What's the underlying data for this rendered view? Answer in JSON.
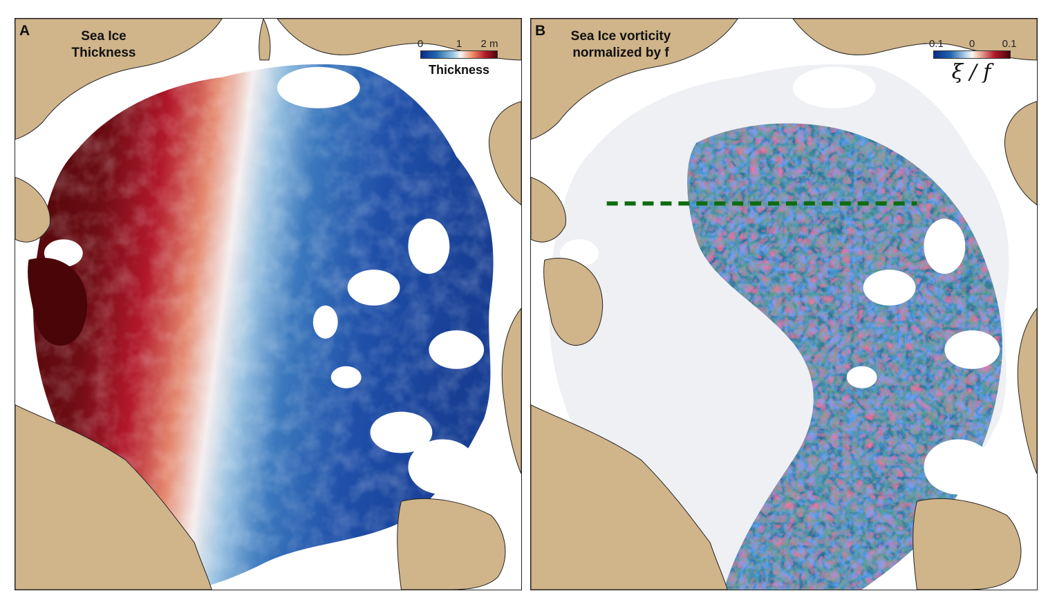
{
  "panels": {
    "a": {
      "letter": "A",
      "title_line1": "Sea Ice",
      "title_line2": "Thickness",
      "colorbar": {
        "ticks": [
          "0",
          "1",
          "2 m"
        ],
        "label": "Thickness"
      }
    },
    "b": {
      "letter": "B",
      "title_line1": "Sea Ice vorticity",
      "title_line2": "normalized by f",
      "colorbar": {
        "ticks": [
          "−0.1",
          "0",
          "0.1"
        ],
        "label": "ξ / f"
      }
    }
  },
  "colors": {
    "land": "#d0b48a",
    "thick_high": "#4a0508",
    "thick_mid": "#b2182b",
    "neutral": "#f4f4f4",
    "thin_low": "#1f4fa8",
    "vorticity_positive": "#b2182b",
    "vorticity_negative": "#2166ac",
    "transect_line": "#0f6b0f"
  }
}
